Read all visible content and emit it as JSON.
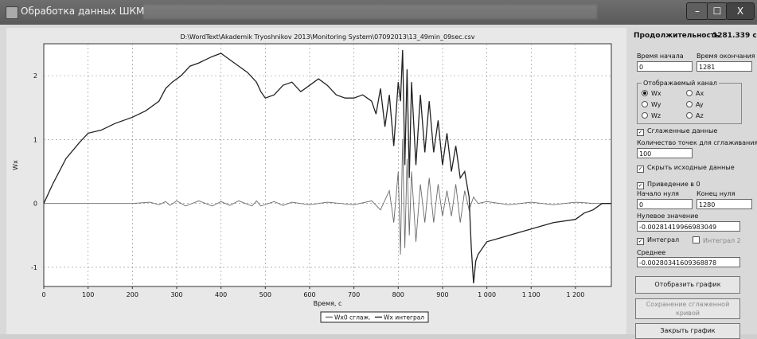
{
  "window": {
    "title": "Обработка данных ШКМ",
    "min": "–",
    "max": "☐",
    "close": "X"
  },
  "chart_data": {
    "type": "line",
    "title": "D:\\WordText\\Akademik Tryoshnikov 2013\\Monitoring System\\07092013\\13_49min_09sec.csv",
    "xlabel": "Время, с",
    "ylabel": "Wx",
    "xlim": [
      0,
      1281
    ],
    "ylim": [
      -1.3,
      2.5
    ],
    "x_ticks": [
      "0",
      "100",
      "200",
      "300",
      "400",
      "500",
      "600",
      "700",
      "800",
      "900",
      "1 000",
      "1 100",
      "1 200"
    ],
    "y_ticks": [
      "-1",
      "0",
      "1",
      "2"
    ],
    "grid": true,
    "legend": "bottom-center",
    "series": [
      {
        "name": "Wx0 сглаж.",
        "x": [
          0,
          50,
          100,
          150,
          200,
          240,
          260,
          275,
          285,
          300,
          320,
          350,
          380,
          400,
          420,
          440,
          470,
          480,
          490,
          520,
          540,
          560,
          600,
          640,
          700,
          740,
          760,
          780,
          790,
          800,
          805,
          810,
          815,
          820,
          825,
          830,
          840,
          850,
          860,
          870,
          880,
          890,
          900,
          910,
          920,
          930,
          940,
          950,
          960,
          970,
          980,
          1000,
          1050,
          1100,
          1150,
          1200,
          1225,
          1240,
          1260,
          1281
        ],
        "y": [
          0,
          0,
          0,
          0,
          0,
          0.02,
          -0.02,
          0.03,
          -0.03,
          0.04,
          -0.04,
          0.04,
          -0.04,
          0.03,
          -0.03,
          0.04,
          -0.04,
          0.04,
          -0.04,
          0.03,
          -0.03,
          0.02,
          -0.02,
          0.02,
          -0.02,
          0.04,
          -0.1,
          0.2,
          -0.3,
          0.5,
          -0.8,
          1.0,
          -0.7,
          0.7,
          -0.5,
          0.5,
          -0.6,
          0.3,
          -0.3,
          0.4,
          -0.3,
          0.3,
          -0.2,
          0.2,
          -0.2,
          0.3,
          -0.3,
          0.2,
          -0.1,
          0.1,
          0,
          0.03,
          -0.02,
          0.02,
          -0.02,
          0.02,
          0.01,
          0,
          0,
          0
        ]
      },
      {
        "name": "Wx интеграл",
        "x": [
          0,
          20,
          50,
          80,
          100,
          130,
          160,
          200,
          230,
          260,
          275,
          290,
          310,
          330,
          350,
          380,
          400,
          420,
          440,
          460,
          480,
          490,
          500,
          520,
          540,
          560,
          580,
          600,
          620,
          640,
          660,
          680,
          700,
          720,
          740,
          750,
          760,
          770,
          780,
          790,
          800,
          805,
          810,
          815,
          820,
          825,
          830,
          840,
          850,
          860,
          870,
          880,
          890,
          900,
          910,
          920,
          930,
          940,
          950,
          960,
          965,
          970,
          975,
          980,
          1000,
          1050,
          1100,
          1150,
          1200,
          1220,
          1240,
          1260,
          1281
        ],
        "y": [
          0,
          0.3,
          0.7,
          0.95,
          1.1,
          1.15,
          1.25,
          1.35,
          1.45,
          1.6,
          1.8,
          1.9,
          2.0,
          2.15,
          2.2,
          2.3,
          2.35,
          2.25,
          2.15,
          2.05,
          1.9,
          1.75,
          1.65,
          1.7,
          1.85,
          1.9,
          1.75,
          1.85,
          1.95,
          1.85,
          1.7,
          1.65,
          1.65,
          1.7,
          1.6,
          1.4,
          1.8,
          1.2,
          1.7,
          0.9,
          1.9,
          1.6,
          2.4,
          0.6,
          2.1,
          0.4,
          1.9,
          0.6,
          1.7,
          0.8,
          1.6,
          0.8,
          1.3,
          0.6,
          1.1,
          0.5,
          0.9,
          0.4,
          0.5,
          0.1,
          -0.7,
          -1.25,
          -0.9,
          -0.8,
          -0.6,
          -0.5,
          -0.4,
          -0.3,
          -0.25,
          -0.15,
          -0.1,
          0,
          0
        ]
      }
    ]
  },
  "panel": {
    "duration_label": "Продолжительность",
    "duration_value": "1281.339 с",
    "start_label": "Время начала",
    "start_value": "0",
    "end_label": "Время окончания",
    "end_value": "1281",
    "channel_group_label": "Отображаемый канал",
    "channels": [
      "Wx",
      "Ax",
      "Wy",
      "Ay",
      "Wz",
      "Az"
    ],
    "smooth_label": "Сглаженные данные",
    "smooth_check": "✓",
    "points_label": "Количество точек для сглаживания",
    "points_value": "100",
    "hide_label": "Скрыть исходные данные",
    "hide_check": "✓",
    "zero_label": "Приведение в 0",
    "zero_check": "✓",
    "zero_start_label": "Начало нуля",
    "zero_start_value": "0",
    "zero_end_label": "Конец нуля",
    "zero_end_value": "1280",
    "null_value_label": "Нулевое значение",
    "null_value": "-0.00281419966983049",
    "integral_label": "Интеграл",
    "integral_check": "✓",
    "integral2_label": "Интеграл 2",
    "mean_label": "Среднее",
    "mean_value": "-0.00280341609368878",
    "show_button": "Отобразить график",
    "save_button": "Сохранение сглаженной кривой",
    "close_button": "Закрыть график"
  }
}
